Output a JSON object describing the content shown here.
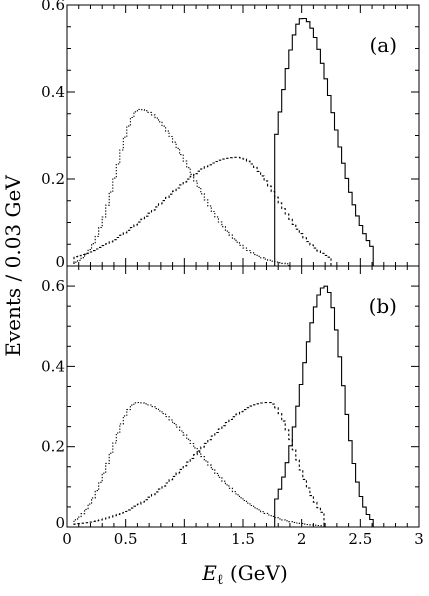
{
  "chart_data": [
    {
      "type": "histogram",
      "panel_label": "(a)",
      "xlim": [
        0,
        3
      ],
      "ylim": [
        0,
        0.6
      ],
      "bin_width": 0.03,
      "x_ticks": [
        "0",
        "0.5",
        "1",
        "1.5",
        "2",
        "2.5",
        "3"
      ],
      "x_tick_values": [
        0,
        0.5,
        1,
        1.5,
        2,
        2.5,
        3
      ],
      "y_ticks": [
        "0",
        "0.2",
        "0.4",
        "0.6"
      ],
      "y_tick_values": [
        0,
        0.2,
        0.4,
        0.6
      ],
      "series": [
        {
          "style": "dotted",
          "shape": "skewed-peak",
          "peak_x": 0.62,
          "peak_y": 0.36,
          "left_sigma": 0.2,
          "right_sigma": 0.43,
          "x_min": 0.06,
          "x_max": 1.9
        },
        {
          "style": "dashed",
          "shape": "skewed-peak",
          "peak_x": 1.45,
          "peak_y": 0.25,
          "left_sigma": 0.62,
          "right_sigma": 0.35,
          "x_min": 0.06,
          "x_max": 2.25
        },
        {
          "style": "solid",
          "shape": "skewed-peak",
          "peak_x": 2.01,
          "peak_y": 0.57,
          "left_sigma": 0.2,
          "right_sigma": 0.26,
          "x_min": 1.78,
          "x_max": 2.6
        }
      ]
    },
    {
      "type": "histogram",
      "panel_label": "(b)",
      "xlim": [
        0,
        3
      ],
      "ylim": [
        0,
        0.65
      ],
      "bin_width": 0.03,
      "x_ticks": [
        "0",
        "0.5",
        "1",
        "1.5",
        "2",
        "2.5",
        "3"
      ],
      "x_tick_values": [
        0,
        0.5,
        1,
        1.5,
        2,
        2.5,
        3
      ],
      "y_ticks": [
        "0",
        "0.2",
        "0.4",
        "0.6"
      ],
      "y_tick_values": [
        0,
        0.2,
        0.4,
        0.6
      ],
      "series": [
        {
          "style": "dotted",
          "shape": "skewed-peak",
          "peak_x": 0.6,
          "peak_y": 0.31,
          "left_sigma": 0.22,
          "right_sigma": 0.52,
          "x_min": 0.06,
          "x_max": 2.2
        },
        {
          "style": "dashed",
          "shape": "skewed-peak",
          "peak_x": 1.72,
          "peak_y": 0.31,
          "left_sigma": 0.6,
          "right_sigma": 0.22,
          "x_min": 0.06,
          "x_max": 2.2
        },
        {
          "style": "solid",
          "shape": "skewed-peak",
          "peak_x": 2.2,
          "peak_y": 0.6,
          "left_sigma": 0.2,
          "right_sigma": 0.15,
          "x_min": 1.78,
          "x_max": 2.6
        }
      ]
    }
  ],
  "axes": {
    "ylabel": "Events / 0.03 GeV",
    "xlabel_symbol": "E",
    "xlabel_subscript": "ℓ",
    "xlabel_unit": " (GeV)"
  }
}
